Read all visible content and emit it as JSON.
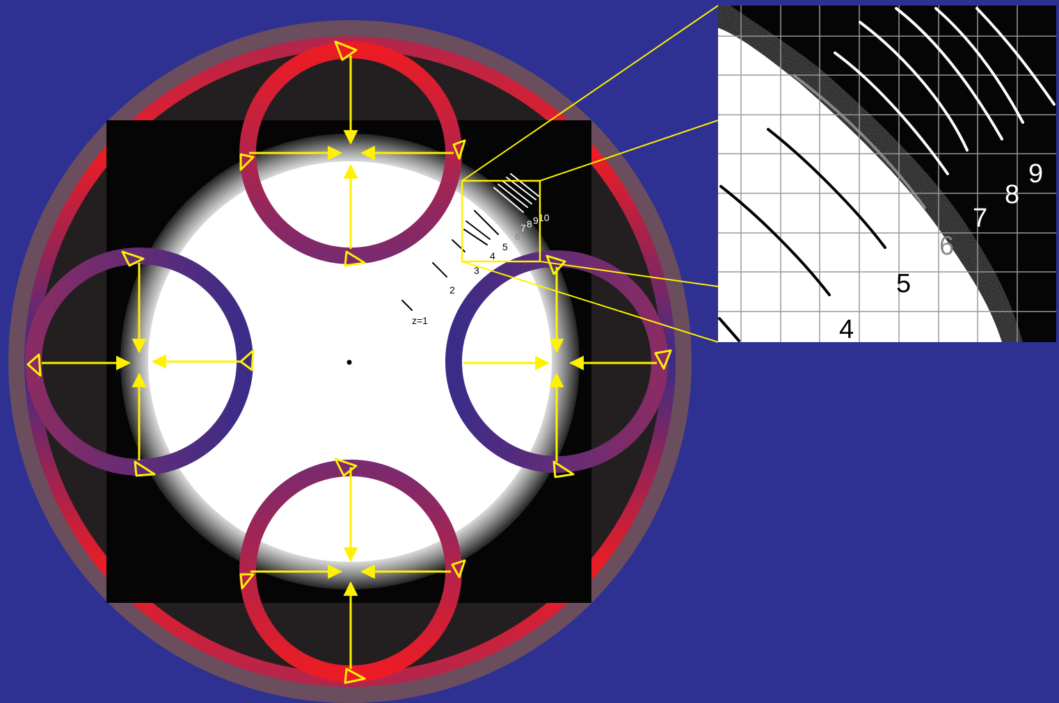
{
  "colors": {
    "background": "#2E3192",
    "outer_halo": "#6A4E5E",
    "ring_red": "#ED1C24",
    "ring_purple": "#3B2C88",
    "arrow_yellow": "#FFF200",
    "field_black": "#050505",
    "field_white": "#FFFFFF"
  },
  "main_labels": [
    "z=1",
    "2",
    "3",
    "4",
    "5",
    "6",
    "7",
    "8",
    "9",
    "10"
  ],
  "inset": {
    "labels": [
      "4",
      "5",
      "6",
      "7",
      "8",
      "9"
    ]
  },
  "icons": [
    "perspective-eye-icon"
  ]
}
